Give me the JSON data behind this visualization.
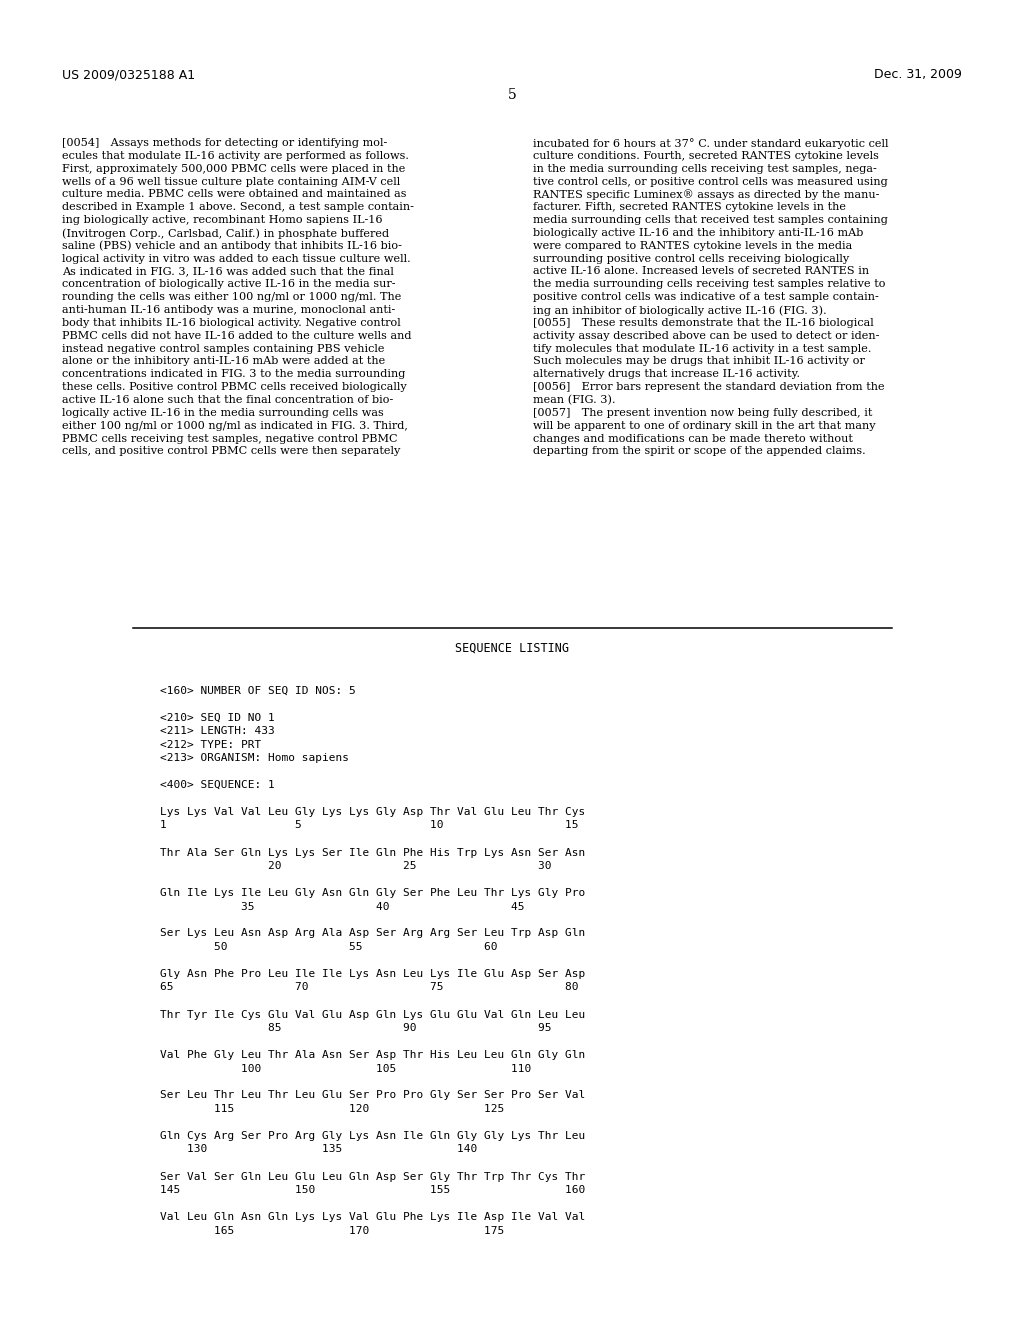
{
  "patent_number": "US 2009/0325188 A1",
  "patent_date": "Dec. 31, 2009",
  "page_number": "5",
  "background_color": "#ffffff",
  "text_color": "#000000",
  "lines_left": [
    "[0054] Assays methods for detecting or identifying mol-",
    "ecules that modulate IL-16 activity are performed as follows.",
    "First, approximately 500,000 PBMC cells were placed in the",
    "wells of a 96 well tissue culture plate containing AIM-V cell",
    "culture media. PBMC cells were obtained and maintained as",
    "described in Example 1 above. Second, a test sample contain-",
    "ing biologically active, recombinant Homo sapiens IL-16",
    "(Invitrogen Corp., Carlsbad, Calif.) in phosphate buffered",
    "saline (PBS) vehicle and an antibody that inhibits IL-16 bio-",
    "logical activity in vitro was added to each tissue culture well.",
    "As indicated in FIG. 3, IL-16 was added such that the final",
    "concentration of biologically active IL-16 in the media sur-",
    "rounding the cells was either 100 ng/ml or 1000 ng/ml. The",
    "anti-human IL-16 antibody was a murine, monoclonal anti-",
    "body that inhibits IL-16 biological activity. Negative control",
    "PBMC cells did not have IL-16 added to the culture wells and",
    "instead negative control samples containing PBS vehicle",
    "alone or the inhibitory anti-IL-16 mAb were added at the",
    "concentrations indicated in FIG. 3 to the media surrounding",
    "these cells. Positive control PBMC cells received biologically",
    "active IL-16 alone such that the final concentration of bio-",
    "logically active IL-16 in the media surrounding cells was",
    "either 100 ng/ml or 1000 ng/ml as indicated in FIG. 3. Third,",
    "PBMC cells receiving test samples, negative control PBMC",
    "cells, and positive control PBMC cells were then separately"
  ],
  "lines_right": [
    "incubated for 6 hours at 37° C. under standard eukaryotic cell",
    "culture conditions. Fourth, secreted RANTES cytokine levels",
    "in the media surrounding cells receiving test samples, nega-",
    "tive control cells, or positive control cells was measured using",
    "RANTES specific Luminex® assays as directed by the manu-",
    "facturer. Fifth, secreted RANTES cytokine levels in the",
    "media surrounding cells that received test samples containing",
    "biologically active IL-16 and the inhibitory anti-IL-16 mAb",
    "were compared to RANTES cytokine levels in the media",
    "surrounding positive control cells receiving biologically",
    "active IL-16 alone. Increased levels of secreted RANTES in",
    "the media surrounding cells receiving test samples relative to",
    "positive control cells was indicative of a test sample contain-",
    "ing an inhibitor of biologically active IL-16 (FIG. 3).",
    "[0055] These results demonstrate that the IL-16 biological",
    "activity assay described above can be used to detect or iden-",
    "tify molecules that modulate IL-16 activity in a test sample.",
    "Such molecules may be drugs that inhibit IL-16 activity or",
    "alternatively drugs that increase IL-16 activity.",
    "[0056] Error bars represent the standard deviation from the",
    "mean (FIG. 3).",
    "[0057] The present invention now being fully described, it",
    "will be apparent to one of ordinary skill in the art that many",
    "changes and modifications can be made thereto without",
    "departing from the spirit or scope of the appended claims."
  ],
  "seq_lines": [
    "",
    "<160> NUMBER OF SEQ ID NOS: 5",
    "",
    "<210> SEQ ID NO 1",
    "<211> LENGTH: 433",
    "<212> TYPE: PRT",
    "<213> ORGANISM: Homo sapiens",
    "",
    "<400> SEQUENCE: 1",
    "",
    "Lys Lys Val Val Leu Gly Lys Lys Gly Asp Thr Val Glu Leu Thr Cys",
    "1                   5                   10                  15",
    "",
    "Thr Ala Ser Gln Lys Lys Ser Ile Gln Phe His Trp Lys Asn Ser Asn",
    "                20                  25                  30",
    "",
    "Gln Ile Lys Ile Leu Gly Asn Gln Gly Ser Phe Leu Thr Lys Gly Pro",
    "            35                  40                  45",
    "",
    "Ser Lys Leu Asn Asp Arg Ala Asp Ser Arg Arg Ser Leu Trp Asp Gln",
    "        50                  55                  60",
    "",
    "Gly Asn Phe Pro Leu Ile Ile Lys Asn Leu Lys Ile Glu Asp Ser Asp",
    "65                  70                  75                  80",
    "",
    "Thr Tyr Ile Cys Glu Val Glu Asp Gln Lys Glu Glu Val Gln Leu Leu",
    "                85                  90                  95",
    "",
    "Val Phe Gly Leu Thr Ala Asn Ser Asp Thr His Leu Leu Gln Gly Gln",
    "            100                 105                 110",
    "",
    "Ser Leu Thr Leu Thr Leu Glu Ser Pro Pro Gly Ser Ser Pro Ser Val",
    "        115                 120                 125",
    "",
    "Gln Cys Arg Ser Pro Arg Gly Lys Asn Ile Gln Gly Gly Lys Thr Leu",
    "    130                 135                 140",
    "",
    "Ser Val Ser Gln Leu Glu Leu Gln Asp Ser Gly Thr Trp Thr Cys Thr",
    "145                 150                 155                 160",
    "",
    "Val Leu Gln Asn Gln Lys Lys Val Glu Phe Lys Ile Asp Ile Val Val",
    "        165                 170                 175"
  ]
}
